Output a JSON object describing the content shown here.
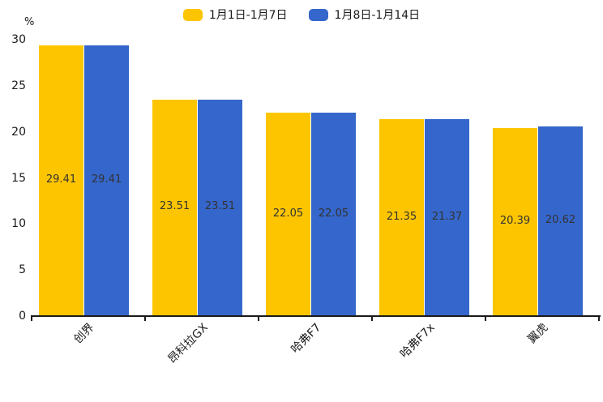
{
  "chart_data": {
    "type": "bar",
    "title": "",
    "unit": "%",
    "categories": [
      "创界",
      "昂科拉GX",
      "哈弗F7",
      "哈弗F7x",
      "翼虎"
    ],
    "series": [
      {
        "name": "1月1日-1月7日",
        "color": "#FDC500",
        "values": [
          29.41,
          23.51,
          22.05,
          21.35,
          20.39
        ]
      },
      {
        "name": "1月8日-1月14日",
        "color": "#3566CB",
        "values": [
          29.41,
          23.51,
          22.05,
          21.37,
          20.62
        ]
      }
    ],
    "yticks": [
      0,
      5,
      10,
      15,
      20,
      25,
      30
    ],
    "ylim": [
      0,
      30
    ],
    "grid": false,
    "legend_position": "top-center",
    "value_labels_visible": true,
    "axis_color": "#1a1a1a",
    "value_label_color": "#333333"
  }
}
